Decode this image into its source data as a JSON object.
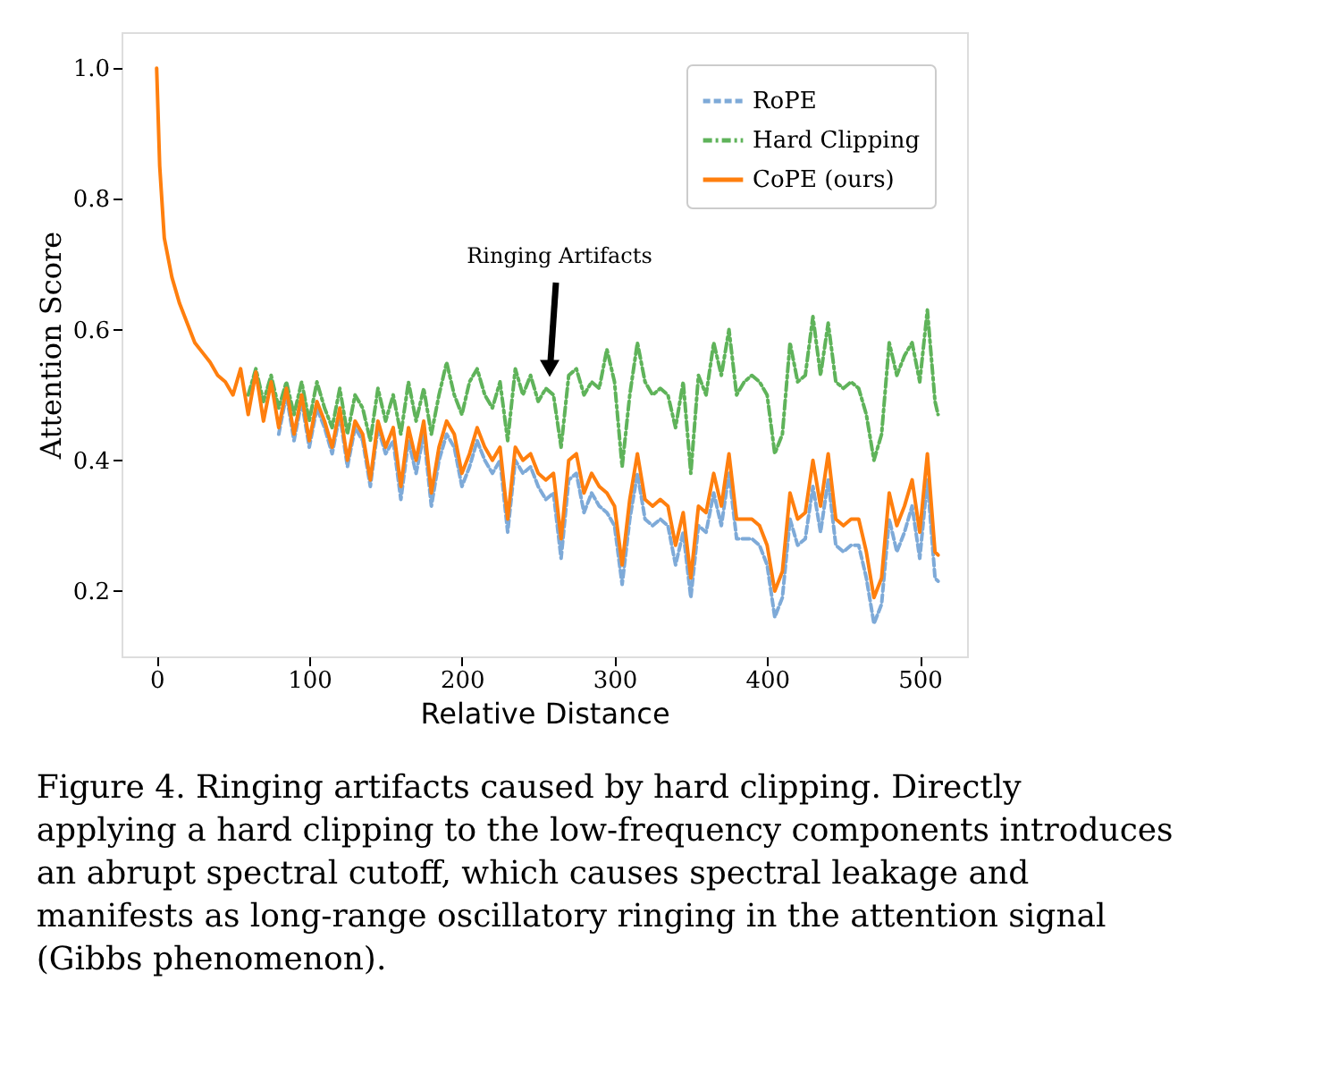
{
  "chart_data": {
    "type": "line",
    "xlabel": "Relative Distance",
    "ylabel": "Attention Score",
    "x": [
      0,
      2,
      5,
      10,
      15,
      20,
      25,
      30,
      35,
      40,
      45,
      50,
      55,
      60,
      65,
      70,
      75,
      80,
      85,
      90,
      95,
      100,
      105,
      110,
      115,
      120,
      125,
      130,
      135,
      140,
      145,
      150,
      155,
      160,
      165,
      170,
      175,
      180,
      185,
      190,
      195,
      200,
      205,
      210,
      215,
      220,
      225,
      230,
      235,
      240,
      245,
      250,
      255,
      260,
      265,
      270,
      275,
      280,
      285,
      290,
      295,
      300,
      305,
      310,
      315,
      320,
      325,
      330,
      335,
      340,
      345,
      350,
      355,
      360,
      365,
      370,
      375,
      380,
      385,
      390,
      395,
      400,
      405,
      410,
      415,
      420,
      425,
      430,
      435,
      440,
      445,
      450,
      455,
      460,
      465,
      470,
      475,
      480,
      485,
      490,
      495,
      500,
      505,
      510,
      512
    ],
    "series": [
      {
        "name": "RoPE",
        "color": "#7eaad8",
        "line_style": "dashed",
        "values": [
          null,
          null,
          null,
          null,
          null,
          null,
          null,
          null,
          null,
          null,
          null,
          null,
          null,
          null,
          null,
          null,
          null,
          0.44,
          0.5,
          0.43,
          0.49,
          0.42,
          0.48,
          0.45,
          0.41,
          0.47,
          0.39,
          0.45,
          0.43,
          0.36,
          0.45,
          0.41,
          0.43,
          0.34,
          0.43,
          0.38,
          0.44,
          0.33,
          0.4,
          0.44,
          0.42,
          0.36,
          0.39,
          0.43,
          0.4,
          0.38,
          0.4,
          0.29,
          0.4,
          0.38,
          0.39,
          0.36,
          0.34,
          0.35,
          0.25,
          0.37,
          0.38,
          0.32,
          0.35,
          0.33,
          0.32,
          0.3,
          0.21,
          0.31,
          0.38,
          0.31,
          0.3,
          0.31,
          0.3,
          0.24,
          0.29,
          0.19,
          0.3,
          0.29,
          0.35,
          0.3,
          0.38,
          0.28,
          0.28,
          0.28,
          0.27,
          0.24,
          0.16,
          0.19,
          0.31,
          0.27,
          0.28,
          0.36,
          0.29,
          0.37,
          0.27,
          0.26,
          0.27,
          0.27,
          0.22,
          0.15,
          0.18,
          0.31,
          0.26,
          0.29,
          0.33,
          0.25,
          0.37,
          0.22,
          0.215
        ]
      },
      {
        "name": "Hard Clipping",
        "color": "#5fb35a",
        "line_style": "dashdot",
        "values": [
          null,
          null,
          null,
          null,
          null,
          null,
          null,
          null,
          null,
          null,
          null,
          null,
          null,
          0.5,
          0.54,
          0.49,
          0.53,
          0.48,
          0.52,
          0.47,
          0.52,
          0.46,
          0.52,
          0.48,
          0.45,
          0.51,
          0.44,
          0.5,
          0.48,
          0.43,
          0.51,
          0.46,
          0.5,
          0.44,
          0.52,
          0.46,
          0.51,
          0.44,
          0.5,
          0.55,
          0.5,
          0.47,
          0.52,
          0.54,
          0.5,
          0.48,
          0.52,
          0.43,
          0.54,
          0.5,
          0.53,
          0.49,
          0.51,
          0.5,
          0.42,
          0.53,
          0.54,
          0.5,
          0.52,
          0.51,
          0.57,
          0.52,
          0.39,
          0.5,
          0.58,
          0.52,
          0.5,
          0.51,
          0.5,
          0.45,
          0.52,
          0.38,
          0.53,
          0.5,
          0.58,
          0.53,
          0.6,
          0.5,
          0.52,
          0.53,
          0.52,
          0.5,
          0.41,
          0.44,
          0.58,
          0.52,
          0.53,
          0.62,
          0.53,
          0.61,
          0.52,
          0.51,
          0.52,
          0.51,
          0.47,
          0.4,
          0.44,
          0.58,
          0.53,
          0.56,
          0.58,
          0.52,
          0.63,
          0.49,
          0.47
        ]
      },
      {
        "name": "CoPE (ours)",
        "color": "#ff7f0e",
        "line_style": "solid",
        "values": [
          1.0,
          0.85,
          0.74,
          0.68,
          0.64,
          0.61,
          0.58,
          0.565,
          0.55,
          0.53,
          0.52,
          0.5,
          0.54,
          0.47,
          0.535,
          0.46,
          0.52,
          0.45,
          0.51,
          0.44,
          0.5,
          0.43,
          0.49,
          0.46,
          0.42,
          0.48,
          0.4,
          0.46,
          0.44,
          0.37,
          0.46,
          0.42,
          0.45,
          0.36,
          0.45,
          0.4,
          0.46,
          0.35,
          0.42,
          0.46,
          0.44,
          0.38,
          0.41,
          0.45,
          0.42,
          0.4,
          0.42,
          0.31,
          0.42,
          0.4,
          0.41,
          0.38,
          0.37,
          0.38,
          0.28,
          0.4,
          0.41,
          0.35,
          0.38,
          0.36,
          0.35,
          0.33,
          0.24,
          0.34,
          0.41,
          0.34,
          0.33,
          0.34,
          0.33,
          0.27,
          0.32,
          0.22,
          0.33,
          0.32,
          0.38,
          0.33,
          0.41,
          0.31,
          0.31,
          0.31,
          0.3,
          0.27,
          0.2,
          0.23,
          0.35,
          0.31,
          0.32,
          0.4,
          0.33,
          0.41,
          0.31,
          0.3,
          0.31,
          0.31,
          0.26,
          0.19,
          0.22,
          0.35,
          0.3,
          0.33,
          0.37,
          0.29,
          0.41,
          0.26,
          0.255
        ]
      }
    ],
    "xlim": [
      -23,
      531
    ],
    "ylim": [
      0.1,
      1.055
    ],
    "xticks": [
      0,
      100,
      200,
      300,
      400,
      500
    ],
    "yticks": [
      0.2,
      0.4,
      0.6,
      0.8,
      {
        "value": 1.0,
        "label": "1.0"
      }
    ],
    "grid": false,
    "legend": "top right",
    "annotations": [
      "Ringing Artifacts",
      "Figure 4. Ringing artifacts caused by hard clipping. Directly applying a hard clipping to the low-frequency components introduces an abrupt spectral cutoff, which causes spectral leakage and manifests as long-range oscillatory ringing in the attention signal (Gibbs phenomenon)."
    ]
  }
}
